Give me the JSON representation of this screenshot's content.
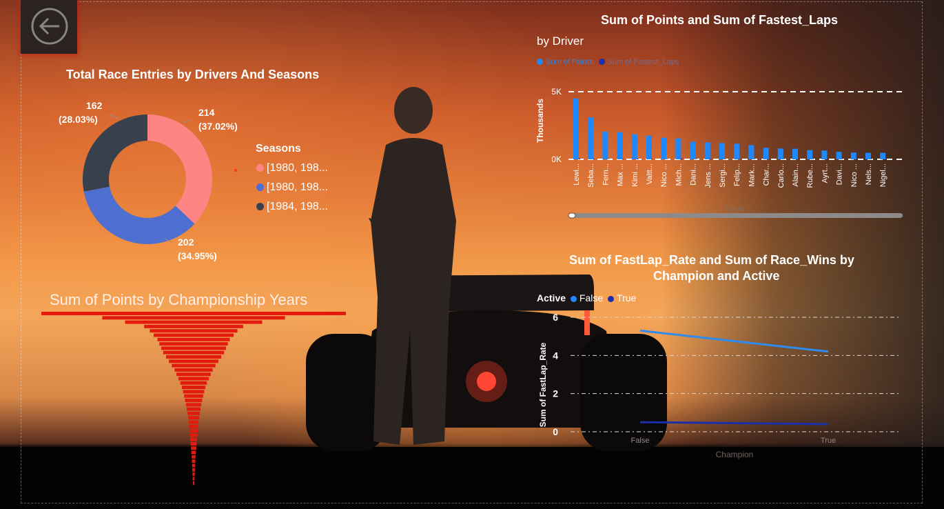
{
  "donut": {
    "title": "Total Race Entries by Drivers And Seasons",
    "legend_title": "Seasons",
    "slices": [
      {
        "label": "[1980, 198...",
        "value": 214,
        "pct": "(37.02%)",
        "color": "#ff8585"
      },
      {
        "label": "[1980, 198...",
        "value": 202,
        "pct": "(34.95%)",
        "color": "#4f6fd0"
      },
      {
        "label": "[1984, 198...",
        "value": 162,
        "pct": "(28.03%)",
        "color": "#39404d"
      }
    ]
  },
  "funnel": {
    "title": "Sum of Points by Championship Years"
  },
  "bar_chart": {
    "title": "Sum of Points and Sum of Fastest_Laps",
    "subtitle": "by Driver",
    "legend": [
      "Sum of Points",
      "Sum of Fastest_Laps"
    ],
    "ylabel": "Thousands",
    "xlabel": "Driver",
    "yticks": [
      "5K",
      "0K"
    ]
  },
  "line_chart": {
    "title_line1": "Sum of FastLap_Rate and Sum of Race_Wins by",
    "title_line2": "Champion and Active",
    "legend_title": "Active",
    "legend": [
      "False",
      "True"
    ],
    "ylabel": "Sum of FastLap_Rate",
    "xlabel": "Champion",
    "yticks": [
      "6",
      "4",
      "2",
      "0"
    ]
  },
  "chart_data": [
    {
      "type": "pie",
      "title": "Total Race Entries by Drivers And Seasons",
      "categories": [
        "[1980, 198...",
        "[1980, 198...",
        "[1984, 198..."
      ],
      "values": [
        214,
        202,
        162
      ],
      "percent": [
        37.02,
        34.95,
        28.03
      ],
      "legend_position": "right"
    },
    {
      "type": "bar",
      "title": "Sum of Points by Championship Years",
      "values": [
        8000,
        4800,
        3600,
        2600,
        2300,
        2100,
        1900,
        1800,
        1700,
        1600,
        1450,
        1300,
        1150,
        1000,
        900,
        800,
        700,
        620,
        560,
        500,
        450,
        400,
        360,
        320,
        290,
        260,
        240,
        220,
        200,
        180,
        160,
        140,
        120,
        100,
        90,
        80,
        70,
        60,
        50,
        40
      ]
    },
    {
      "type": "bar",
      "title": "Sum of Points and Sum of Fastest_Laps",
      "categories": [
        "Lewi...",
        "Seba...",
        "Fern...",
        "Max ...",
        "Kimi ...",
        "Valtt...",
        "Nico ...",
        "Mich...",
        "Dani...",
        "Jens ...",
        "Sergi...",
        "Felip...",
        "Mark...",
        "Char...",
        "Carlo...",
        "Alain...",
        "Rube...",
        "Ayrt...",
        "Davi...",
        "Nico ...",
        "Nels...",
        "Nigel..."
      ],
      "series": [
        {
          "name": "Sum of Points",
          "values": [
            4500,
            3100,
            2050,
            2000,
            1850,
            1750,
            1600,
            1550,
            1300,
            1250,
            1200,
            1150,
            1050,
            850,
            800,
            780,
            680,
            650,
            550,
            500,
            480,
            480
          ]
        },
        {
          "name": "Sum of Fastest_Laps",
          "values": [
            67,
            38,
            24,
            30,
            46,
            20,
            20,
            77,
            17,
            8,
            11,
            15,
            19,
            9,
            4,
            41,
            17,
            19,
            15,
            9,
            23,
            30
          ]
        }
      ],
      "xlabel": "Driver",
      "ylabel": "Thousands",
      "ylim": [
        0,
        5000
      ],
      "legend_position": "top-left"
    },
    {
      "type": "line",
      "title": "Sum of FastLap_Rate and Sum of Race_Wins by Champion and Active",
      "x": [
        "False",
        "True"
      ],
      "series": [
        {
          "name": "False",
          "values": [
            5.3,
            4.2
          ]
        },
        {
          "name": "True",
          "values": [
            0.5,
            0.4
          ]
        }
      ],
      "xlabel": "Champion",
      "ylabel": "Sum of FastLap_Rate",
      "ylim": [
        0,
        6
      ],
      "legend_position": "top-left"
    }
  ]
}
